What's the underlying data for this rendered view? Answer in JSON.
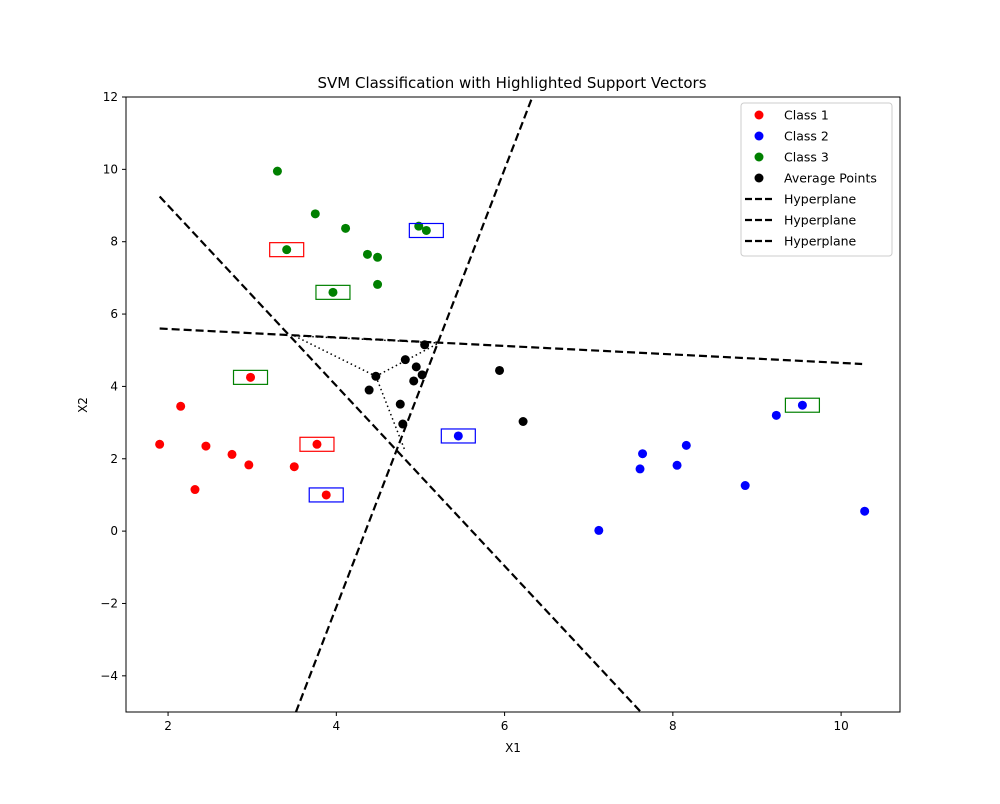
{
  "chart_data": {
    "type": "scatter",
    "title": "SVM Classification with Highlighted Support Vectors",
    "xlabel": "X1",
    "ylabel": "X2",
    "xlim": [
      1.5,
      10.7
    ],
    "ylim": [
      -5,
      12
    ],
    "xticks": [
      2,
      4,
      6,
      8,
      10
    ],
    "yticks": [
      -4,
      -2,
      0,
      2,
      4,
      6,
      8,
      10,
      12
    ],
    "grid": false,
    "legend_position": "top-right",
    "series": [
      {
        "name": "Class 1",
        "color": "#ff0000",
        "points": [
          [
            1.9,
            2.4
          ],
          [
            2.15,
            3.45
          ],
          [
            2.32,
            1.15
          ],
          [
            2.45,
            2.35
          ],
          [
            2.76,
            2.12
          ],
          [
            2.96,
            1.83
          ],
          [
            2.98,
            4.25
          ],
          [
            3.5,
            1.78
          ],
          [
            3.77,
            2.4
          ],
          [
            3.88,
            1.0
          ]
        ]
      },
      {
        "name": "Class 2",
        "color": "#0000ff",
        "points": [
          [
            5.45,
            2.63
          ],
          [
            7.12,
            0.02
          ],
          [
            7.61,
            1.72
          ],
          [
            7.64,
            2.14
          ],
          [
            8.05,
            1.82
          ],
          [
            8.16,
            2.37
          ],
          [
            8.86,
            1.26
          ],
          [
            9.23,
            3.2
          ],
          [
            9.54,
            3.48
          ],
          [
            10.28,
            0.55
          ]
        ]
      },
      {
        "name": "Class 3",
        "color": "#008000",
        "points": [
          [
            3.3,
            9.95
          ],
          [
            3.41,
            7.78
          ],
          [
            3.75,
            8.77
          ],
          [
            3.96,
            6.6
          ],
          [
            4.11,
            8.37
          ],
          [
            4.37,
            7.65
          ],
          [
            4.49,
            7.57
          ],
          [
            4.49,
            6.82
          ],
          [
            4.98,
            8.43
          ],
          [
            5.07,
            8.31
          ]
        ]
      },
      {
        "name": "Average Points",
        "color": "#000000",
        "points": [
          [
            4.39,
            3.9
          ],
          [
            4.47,
            4.28
          ],
          [
            4.76,
            3.51
          ],
          [
            4.79,
            2.96
          ],
          [
            4.82,
            4.74
          ],
          [
            4.92,
            4.15
          ],
          [
            4.95,
            4.54
          ],
          [
            5.02,
            4.32
          ],
          [
            5.05,
            5.15
          ],
          [
            5.94,
            4.44
          ],
          [
            6.22,
            3.03
          ]
        ]
      }
    ],
    "hyperplanes": [
      {
        "name": "Hyperplane",
        "color": "#000000",
        "style": "dashed",
        "points": [
          [
            1.9,
            9.25
          ],
          [
            7.62,
            -5.0
          ]
        ]
      },
      {
        "name": "Hyperplane",
        "color": "#000000",
        "style": "dashed",
        "points": [
          [
            3.52,
            -5.0
          ],
          [
            6.33,
            12.0
          ]
        ]
      },
      {
        "name": "Hyperplane",
        "color": "#000000",
        "style": "dashed",
        "points": [
          [
            1.9,
            5.6
          ],
          [
            10.25,
            4.62
          ]
        ]
      }
    ],
    "dotted_lines": [
      [
        [
          3.5,
          5.4
        ],
        [
          4.47,
          4.28
        ]
      ],
      [
        [
          3.5,
          5.4
        ],
        [
          5.22,
          5.2
        ]
      ],
      [
        [
          4.47,
          4.28
        ],
        [
          5.22,
          5.2
        ]
      ],
      [
        [
          4.47,
          4.28
        ],
        [
          4.82,
          2.2
        ]
      ]
    ],
    "support_vectors": [
      {
        "point": [
          3.41,
          7.78
        ],
        "box_color": "#ff0000"
      },
      {
        "point": [
          3.77,
          2.4
        ],
        "box_color": "#ff0000"
      },
      {
        "point": [
          3.96,
          6.6
        ],
        "box_color": "#008000"
      },
      {
        "point": [
          2.98,
          4.25
        ],
        "box_color": "#008000"
      },
      {
        "point": [
          9.54,
          3.48
        ],
        "box_color": "#008000"
      },
      {
        "point": [
          5.07,
          8.31
        ],
        "box_color": "#0000ff"
      },
      {
        "point": [
          5.45,
          2.63
        ],
        "box_color": "#0000ff"
      },
      {
        "point": [
          3.88,
          1.0
        ],
        "box_color": "#0000ff"
      }
    ]
  }
}
